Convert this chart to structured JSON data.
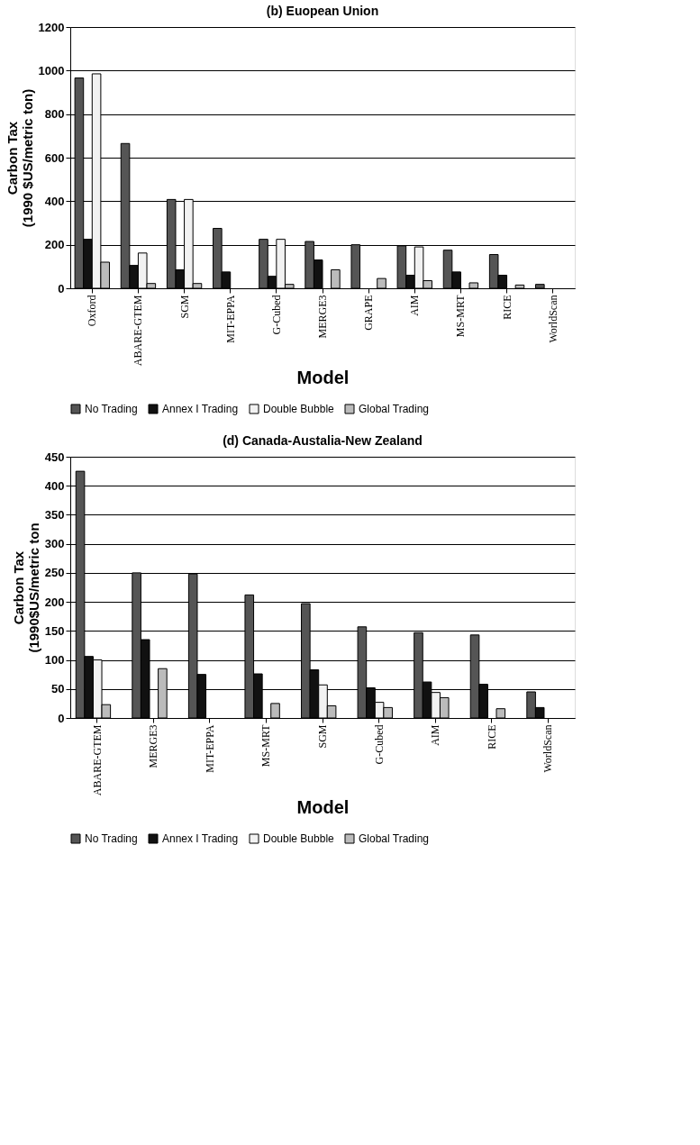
{
  "chart_data": [
    {
      "type": "bar",
      "title": "(b) Euopean Union",
      "xlabel": "Model",
      "ylabel": "Carbon Tax\n(1990 $US/metric ton)",
      "categories": [
        "Oxford",
        "ABARE-GTEM",
        "SGM",
        "MIT-EPPA",
        "G-Cubed",
        "MERGE3",
        "GRAPE",
        "AIM",
        "MS-MRT",
        "RICE",
        "WorldScan"
      ],
      "series": [
        {
          "name": "No Trading",
          "color": "#555555",
          "values": [
            966,
            665,
            408,
            275,
            225,
            215,
            200,
            195,
            175,
            155,
            18
          ]
        },
        {
          "name": "Annex I Trading",
          "color": "#111111",
          "values": [
            225,
            105,
            85,
            75,
            55,
            130,
            null,
            60,
            75,
            60,
            null
          ]
        },
        {
          "name": "Double Bubble",
          "color": "#f2f2f2",
          "values": [
            985,
            162,
            408,
            null,
            225,
            null,
            null,
            190,
            null,
            null,
            null
          ]
        },
        {
          "name": "Global Trading",
          "color": "#bbbbbb",
          "values": [
            120,
            22,
            22,
            null,
            18,
            85,
            45,
            35,
            25,
            15,
            null
          ]
        }
      ],
      "ylim": [
        0,
        1200
      ],
      "yticks": [
        0,
        200,
        400,
        600,
        800,
        1000,
        1200
      ],
      "grid": "y",
      "legend": "bottom"
    },
    {
      "type": "bar",
      "title": "(d) Canada-Austalia-New Zealand",
      "xlabel": "Model",
      "ylabel": "Carbon Tax\n(1990$US/metric ton",
      "categories": [
        "ABARE-GTEM",
        "MERGE3",
        "MIT-EPPA",
        "MS-MRT",
        "SGM",
        "G-Cubed",
        "AIM",
        "RICE",
        "WorldScan"
      ],
      "series": [
        {
          "name": "No Trading",
          "color": "#555555",
          "values": [
            425,
            250,
            248,
            212,
            197,
            157,
            147,
            143,
            45
          ]
        },
        {
          "name": "Annex I Trading",
          "color": "#111111",
          "values": [
            106,
            135,
            75,
            76,
            83,
            52,
            62,
            58,
            18
          ]
        },
        {
          "name": "Double Bubble",
          "color": "#f2f2f2",
          "values": [
            100,
            null,
            null,
            null,
            57,
            27,
            44,
            null,
            null
          ]
        },
        {
          "name": "Global Trading",
          "color": "#bbbbbb",
          "values": [
            23,
            85,
            null,
            25,
            21,
            18,
            35,
            16,
            null
          ]
        }
      ],
      "ylim": [
        0,
        450
      ],
      "yticks": [
        0,
        50,
        100,
        150,
        200,
        250,
        300,
        350,
        400,
        450
      ],
      "grid": "y",
      "legend": "bottom"
    }
  ]
}
